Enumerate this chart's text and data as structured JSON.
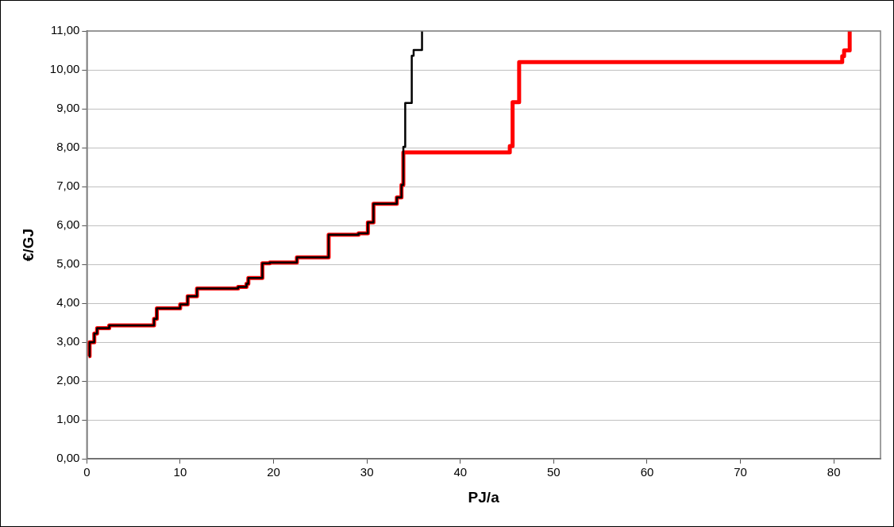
{
  "chart_data": {
    "type": "step",
    "xlabel": "PJ/a",
    "ylabel": "€/GJ",
    "xlim": [
      0,
      85
    ],
    "xticks": [
      0,
      10,
      20,
      30,
      40,
      50,
      60,
      70,
      80
    ],
    "ylim": [
      0,
      11
    ],
    "yticks": [
      {
        "value": 0,
        "label": "0,00"
      },
      {
        "value": 1,
        "label": "1,00"
      },
      {
        "value": 2,
        "label": "2,00"
      },
      {
        "value": 3,
        "label": "3,00"
      },
      {
        "value": 4,
        "label": "4,00"
      },
      {
        "value": 5,
        "label": "5,00"
      },
      {
        "value": 6,
        "label": "6,00"
      },
      {
        "value": 7,
        "label": "7,00"
      },
      {
        "value": 8,
        "label": "8,00"
      },
      {
        "value": 9,
        "label": "9,00"
      },
      {
        "value": 10,
        "label": "10,00"
      },
      {
        "value": 11,
        "label": "11,00"
      }
    ],
    "grid": "y",
    "legend": false,
    "marker": "none",
    "line_style": "solid",
    "series": [
      {
        "color": "#ff0000",
        "x": [
          0.2,
          0.3,
          0.8,
          1.1,
          2.4,
          7.2,
          7.5,
          10.0,
          10.8,
          11.8,
          16.2,
          17.1,
          17.3,
          18.8,
          19.6,
          22.5,
          25.9,
          29.1,
          30.1,
          30.7,
          33.2,
          33.7,
          33.9,
          45.3,
          45.6,
          46.3,
          80.9,
          81.1,
          81.7
        ],
        "values": [
          2.64,
          3.0,
          3.22,
          3.36,
          3.43,
          3.6,
          3.87,
          3.97,
          4.18,
          4.38,
          4.42,
          4.5,
          4.65,
          5.03,
          5.05,
          5.18,
          5.76,
          5.8,
          6.08,
          6.56,
          6.72,
          7.04,
          7.88,
          8.04,
          9.17,
          10.2,
          10.35,
          10.5,
          11
        ]
      },
      {
        "color": "#000000",
        "x": [
          0.2,
          0.3,
          0.8,
          1.1,
          2.4,
          7.2,
          7.5,
          10.0,
          10.8,
          11.8,
          16.2,
          17.1,
          17.3,
          18.8,
          19.6,
          22.5,
          25.9,
          29.1,
          30.1,
          30.7,
          33.2,
          33.7,
          33.9,
          34.1,
          34.8,
          35.0,
          35.9
        ],
        "values": [
          2.64,
          3.0,
          3.22,
          3.36,
          3.43,
          3.6,
          3.87,
          3.97,
          4.18,
          4.38,
          4.42,
          4.5,
          4.65,
          5.03,
          5.05,
          5.18,
          5.76,
          5.8,
          6.08,
          6.56,
          6.72,
          7.04,
          8.02,
          9.15,
          10.36,
          10.51,
          11
        ]
      }
    ]
  }
}
